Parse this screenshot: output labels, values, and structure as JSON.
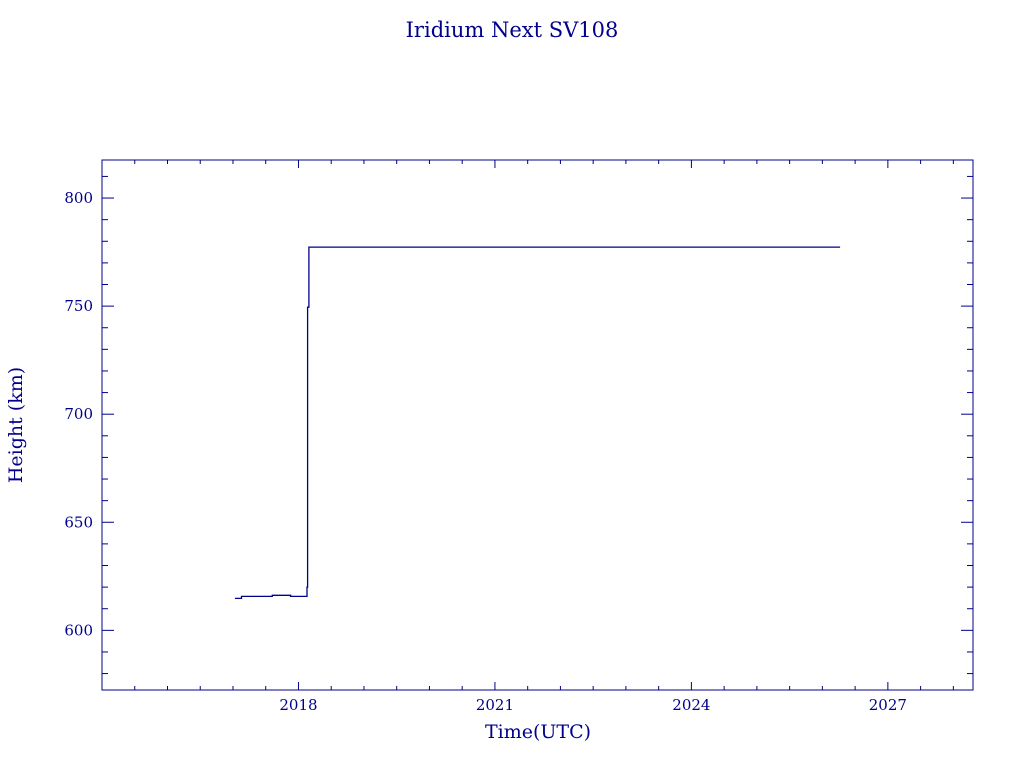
{
  "chart_data": {
    "type": "line",
    "title": "Iridium Next SV108",
    "xlabel": "Time(UTC)",
    "ylabel": "Height (km)",
    "xlim": [
      2015.0,
      2028.3
    ],
    "ylim": [
      572.4,
      817.6
    ],
    "xticks": [
      2018,
      2021,
      2024,
      2027
    ],
    "xtick_labels": [
      "2018",
      "2021",
      "2024",
      "2027"
    ],
    "yticks": [
      600,
      650,
      700,
      750,
      800
    ],
    "ytick_labels": [
      "600",
      "650",
      "700",
      "750",
      "800"
    ],
    "grid": false,
    "color": "#00008b",
    "series": [
      {
        "x": [
          2017.03,
          2017.13,
          2017.13,
          2017.6,
          2017.6,
          2017.88,
          2017.88,
          2018.13,
          2018.13,
          2018.14,
          2018.14,
          2018.16,
          2018.16,
          2026.27
        ],
        "y": [
          614.8,
          614.8,
          615.7,
          615.7,
          616.2,
          616.2,
          615.7,
          615.7,
          620.0,
          620.0,
          749.5,
          749.5,
          777.3,
          777.3
        ]
      }
    ]
  }
}
